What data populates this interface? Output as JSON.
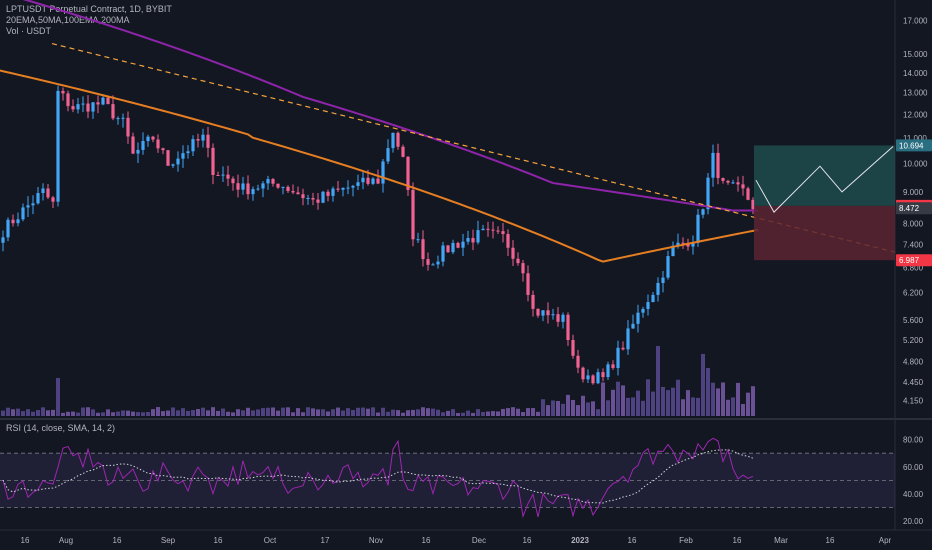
{
  "chart_data": {
    "type": "candlestick",
    "symbol_line": "LPTUSDT Perpetual Contract, 1D, BYBIT",
    "ma_legend": "20EMA,50MA,100EMA,200MA",
    "vol_legend": "Vol · USDT",
    "price_axis": {
      "scale": "log",
      "range": [
        3.95,
        18.2
      ],
      "ticks": [
        "17.000",
        "15.000",
        "14.000",
        "13.000",
        "12.000",
        "11.000",
        "10.000",
        "9.000",
        "8.000",
        "7.400",
        "6.800",
        "6.200",
        "5.600",
        "5.200",
        "4.800",
        "4.450",
        "4.150"
      ]
    },
    "time_axis": {
      "labels": [
        "16",
        "Aug",
        "16",
        "Sep",
        "16",
        "Oct",
        "17",
        "Nov",
        "16",
        "Dec",
        "16",
        "2023",
        "16",
        "Feb",
        "16",
        "Mar",
        "16",
        "Apr"
      ]
    },
    "price_badges": [
      {
        "value": "10.694",
        "color": "#2a6f81"
      },
      {
        "value": "8.545",
        "color": "#f23645"
      },
      {
        "value": "8.472",
        "color": "#363a45"
      },
      {
        "value": "6.987",
        "color": "#f23645"
      }
    ],
    "rsi": {
      "legend": "RSI (14, close, SMA, 14, 2)",
      "ticks": [
        "80.00",
        "60.00",
        "40.00",
        "20.00"
      ],
      "band": [
        30,
        70
      ],
      "range": [
        15,
        90
      ]
    },
    "colors": {
      "up": "#42a5f5",
      "down": "#f06292",
      "ma_purple": "#8e24aa",
      "ma_orange": "#e67e22",
      "trendline": "#f5a43c",
      "target_zone": "#1e4b4c",
      "stop_zone": "#5c2330",
      "rsi_line": "#9c27b0"
    },
    "tp_value": 10.694,
    "entry_value": 8.545,
    "sl_value": 6.987
  }
}
